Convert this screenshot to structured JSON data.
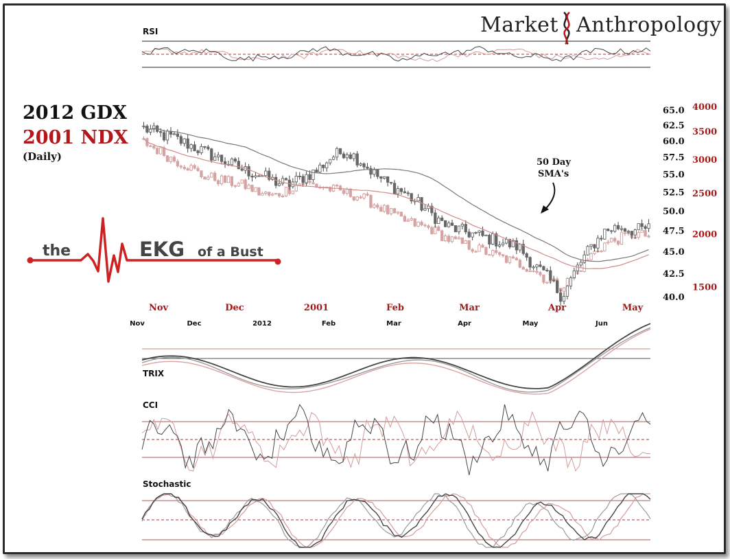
{
  "brand": {
    "word1": "Market",
    "word2": "Anthropology"
  },
  "title": {
    "line1": "2012 GDX",
    "line2": "2001 NDX",
    "line3": "(Daily)"
  },
  "ekg": {
    "the": "the",
    "big": "EKG",
    "rest": "of a Bust"
  },
  "annotation": {
    "line1": "50 Day",
    "line2": "SMA's"
  },
  "colors": {
    "gdx": "#555555",
    "ndx": "#c98f8f",
    "accent": "#b3161b",
    "ekg_line": "#cc2222"
  },
  "chart_data": {
    "type": "candlestick-overlay",
    "series": [
      {
        "name": "2012 GDX",
        "axis": "left-black"
      },
      {
        "name": "2001 NDX",
        "axis": "right-red"
      }
    ],
    "left_axis": {
      "ticks": [
        "65.0",
        "62.5",
        "60.0",
        "57.5",
        "55.0",
        "52.5",
        "50.0",
        "47.5",
        "45.0",
        "42.5",
        "40.0"
      ],
      "values": [
        65.0,
        62.5,
        60.0,
        57.5,
        55.0,
        52.5,
        50.0,
        47.5,
        45.0,
        42.5,
        40.0
      ],
      "scale": "log"
    },
    "right_axis": {
      "ticks": [
        "4000",
        "3500",
        "3000",
        "2500",
        "2000",
        "1500"
      ],
      "values": [
        4000,
        3500,
        3000,
        2500,
        2000,
        1500
      ],
      "scale": "log"
    },
    "x_red": [
      "Nov",
      "Dec",
      "2001",
      "Feb",
      "Mar",
      "Apr",
      "May"
    ],
    "x_black": [
      "Nov",
      "Dec",
      "2012",
      "Feb",
      "Mar",
      "Apr",
      "May",
      "Jun"
    ],
    "panels": {
      "rsi": "RSI",
      "trix": "TRIX",
      "cci": "CCI",
      "stochastic": "Stochastic"
    },
    "gdx_close_approx": [
      62,
      61,
      60.5,
      59.5,
      58.5,
      57.5,
      56.5,
      55.5,
      55,
      54,
      53.5,
      54.5,
      55.5,
      57.5,
      58.5,
      57,
      55,
      53.5,
      52.5,
      51,
      49.5,
      48,
      47.5,
      47,
      46.5,
      46,
      45.5,
      43.5,
      42,
      40,
      43,
      45.5,
      47.5,
      48,
      47.5,
      47.8
    ],
    "ndx_close_approx": [
      3300,
      3150,
      3000,
      2900,
      2750,
      2700,
      2650,
      2600,
      2500,
      2450,
      2550,
      2650,
      2600,
      2550,
      2500,
      2450,
      2350,
      2250,
      2150,
      2100,
      2050,
      1950,
      1900,
      1850,
      1800,
      1750,
      1700,
      1650,
      1550,
      1500,
      1620,
      1780,
      1900,
      1950,
      2000,
      1980
    ]
  }
}
